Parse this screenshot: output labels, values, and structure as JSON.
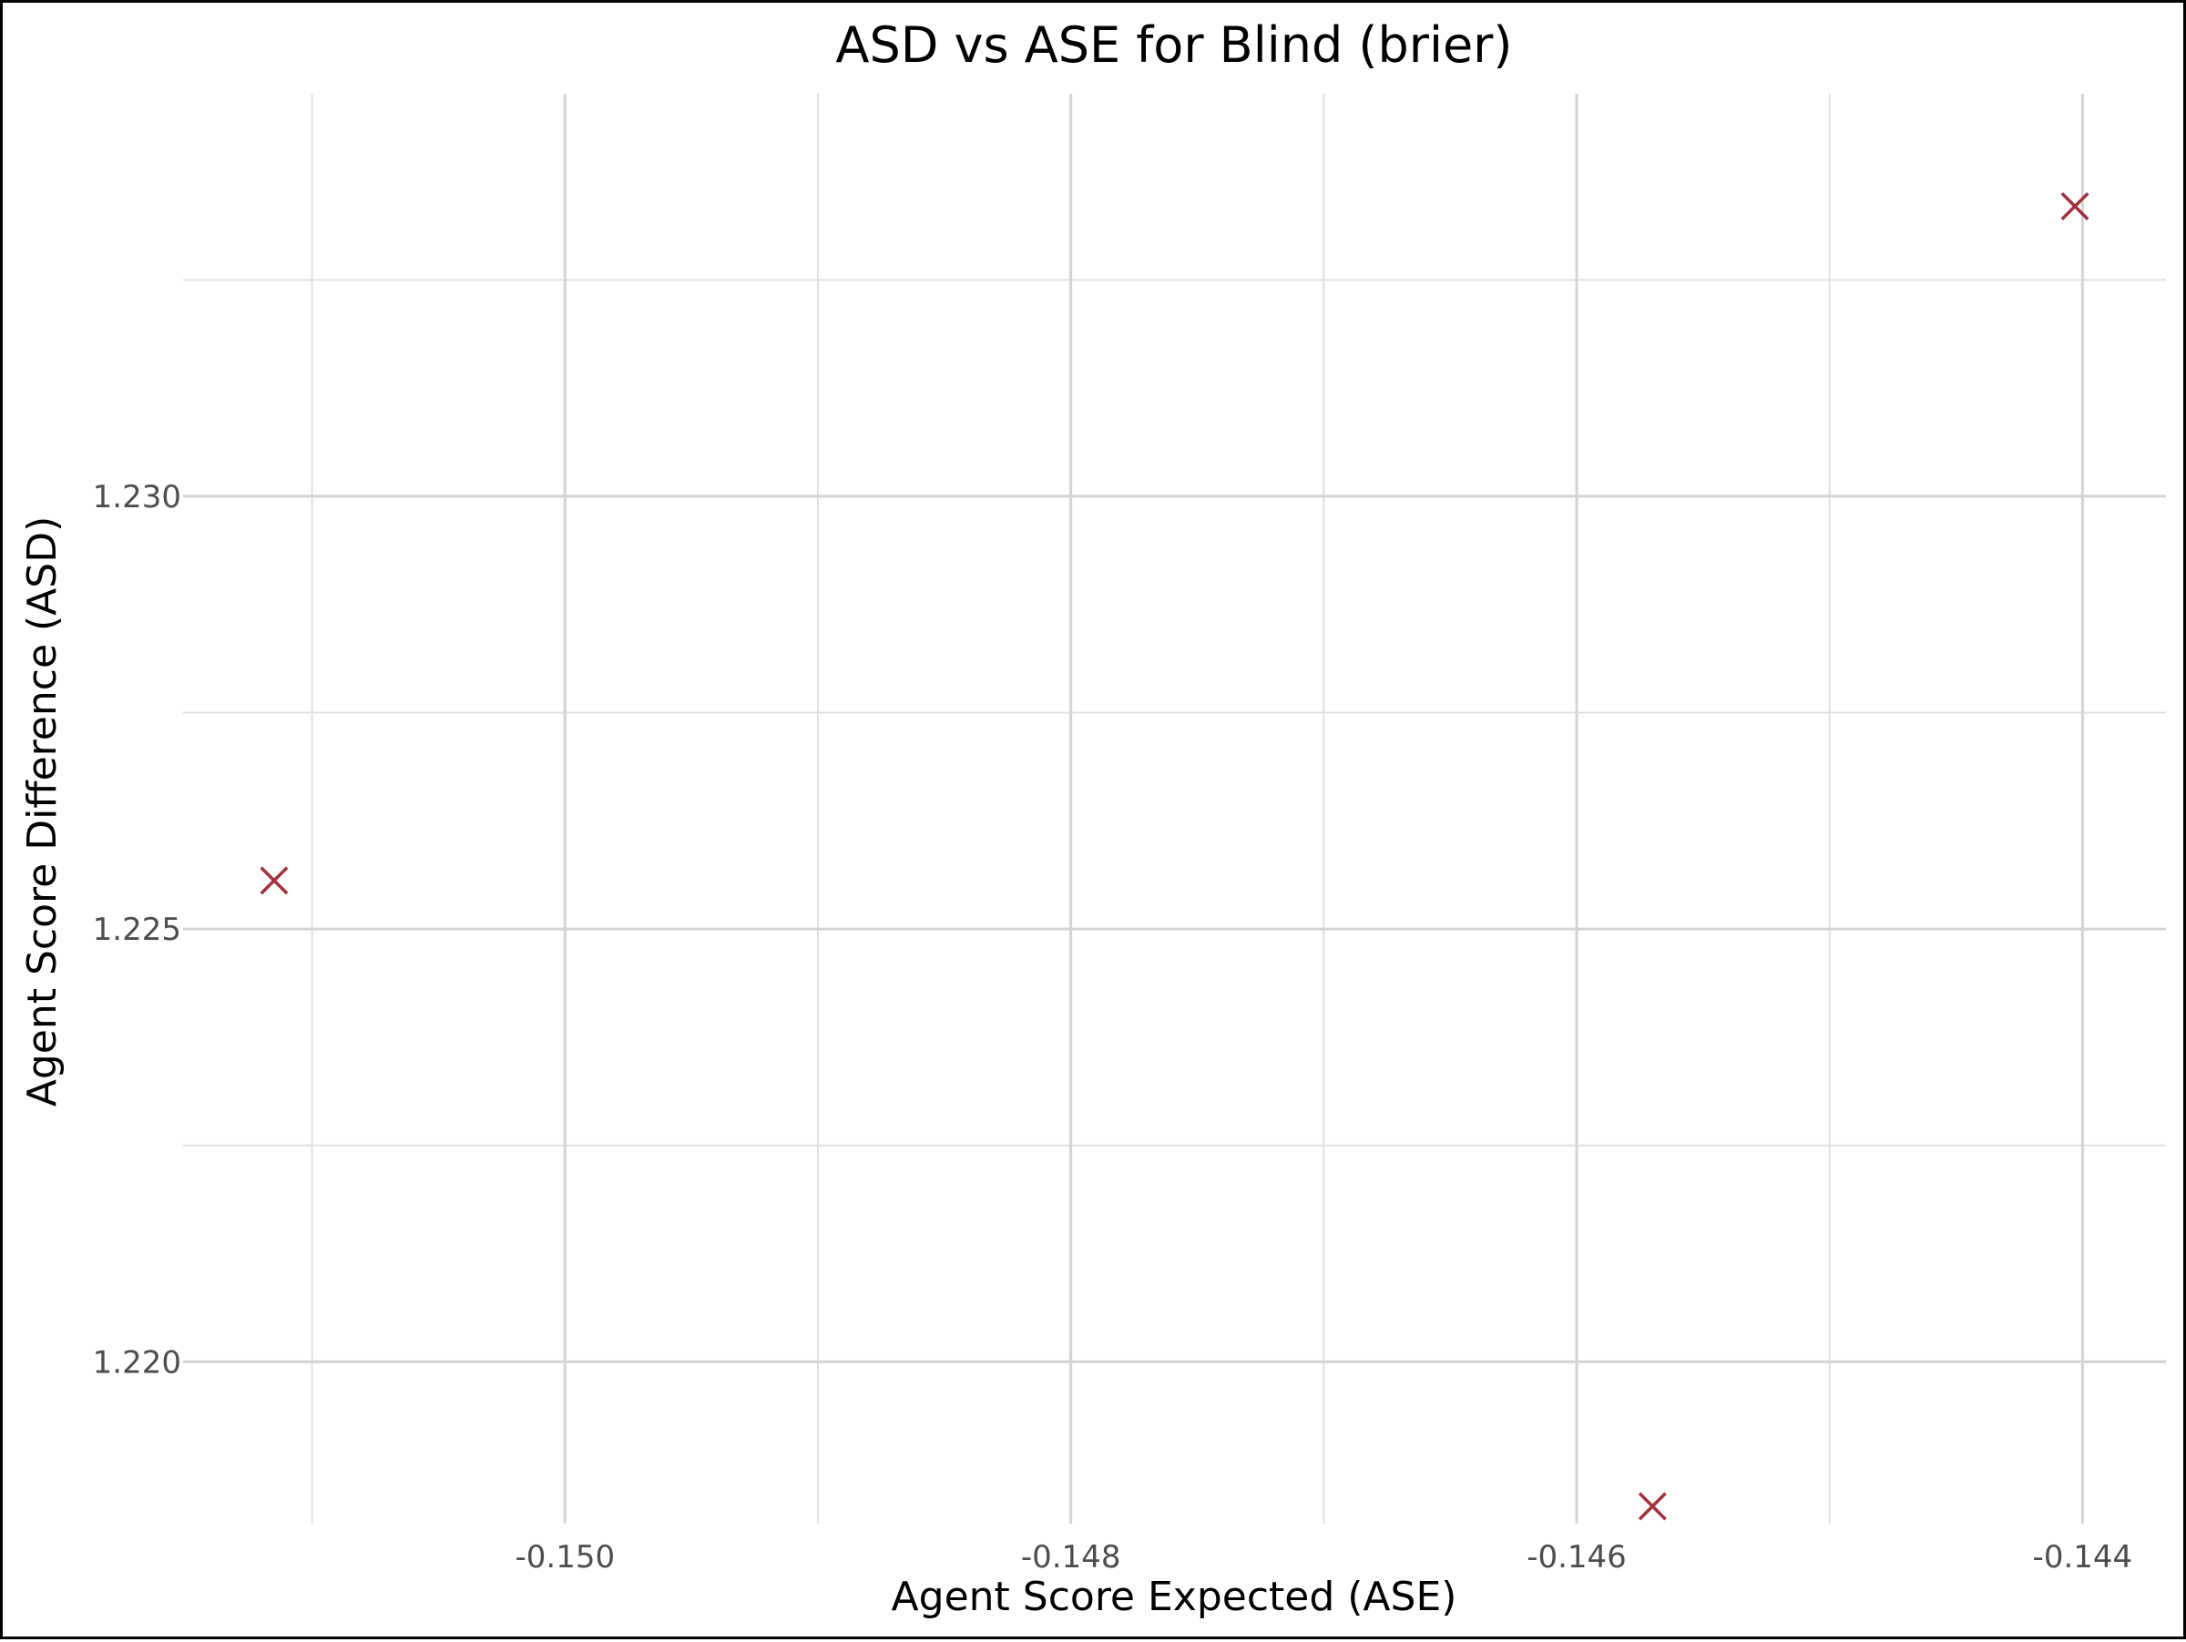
{
  "chart_data": {
    "type": "scatter",
    "title": "ASD vs ASE for Blind (brier)",
    "xlabel": "Agent Score Expected (ASE)",
    "ylabel": "Agent Score Difference (ASD)",
    "xlim": [
      -0.15151,
      -0.14367
    ],
    "ylim": [
      1.21813,
      1.23465
    ],
    "x_ticks": [
      -0.15,
      -0.148,
      -0.146,
      -0.144
    ],
    "x_tick_labels": [
      "-0.150",
      "-0.148",
      "-0.146",
      "-0.144"
    ],
    "y_ticks": [
      1.22,
      1.225,
      1.23
    ],
    "y_tick_labels": [
      "1.220",
      "1.225",
      "1.230"
    ],
    "x_minor_ticks": [
      -0.151,
      -0.149,
      -0.147,
      -0.145
    ],
    "y_minor_ticks": [
      1.2225,
      1.2275,
      1.2325
    ],
    "grid": true,
    "marker": "x",
    "marker_color": "#a3303a",
    "points": [
      {
        "x": -0.15115,
        "y": 1.22556
      },
      {
        "x": -0.1457,
        "y": 1.21833
      },
      {
        "x": -0.14403,
        "y": 1.23335
      }
    ]
  }
}
